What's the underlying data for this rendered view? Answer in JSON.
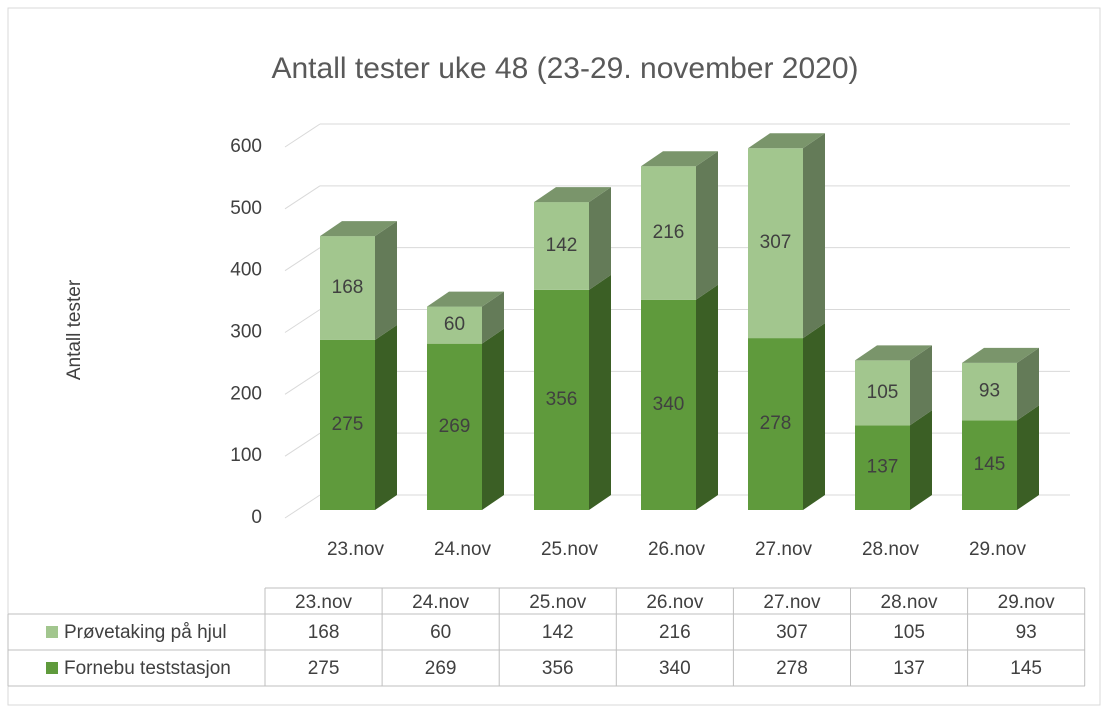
{
  "chart_data": {
    "type": "bar3d_stacked",
    "title": "Antall tester uke 48 (23-29. november 2020)",
    "y_label": "Antall tester",
    "categories": [
      "23.nov",
      "24.nov",
      "25.nov",
      "26.nov",
      "27.nov",
      "28.nov",
      "29.nov"
    ],
    "series": [
      {
        "name": "Fornebu teststasjon",
        "color": "#5f9a3c",
        "values": [
          275,
          269,
          356,
          340,
          278,
          137,
          145
        ]
      },
      {
        "name": "Prøvetaking på hjul",
        "color": "#a2c68e",
        "values": [
          168,
          60,
          142,
          216,
          307,
          105,
          93
        ]
      }
    ],
    "ylim": [
      0,
      600
    ],
    "yticks": [
      0,
      100,
      200,
      300,
      400,
      500,
      600
    ],
    "grid": true,
    "data_table": true
  }
}
